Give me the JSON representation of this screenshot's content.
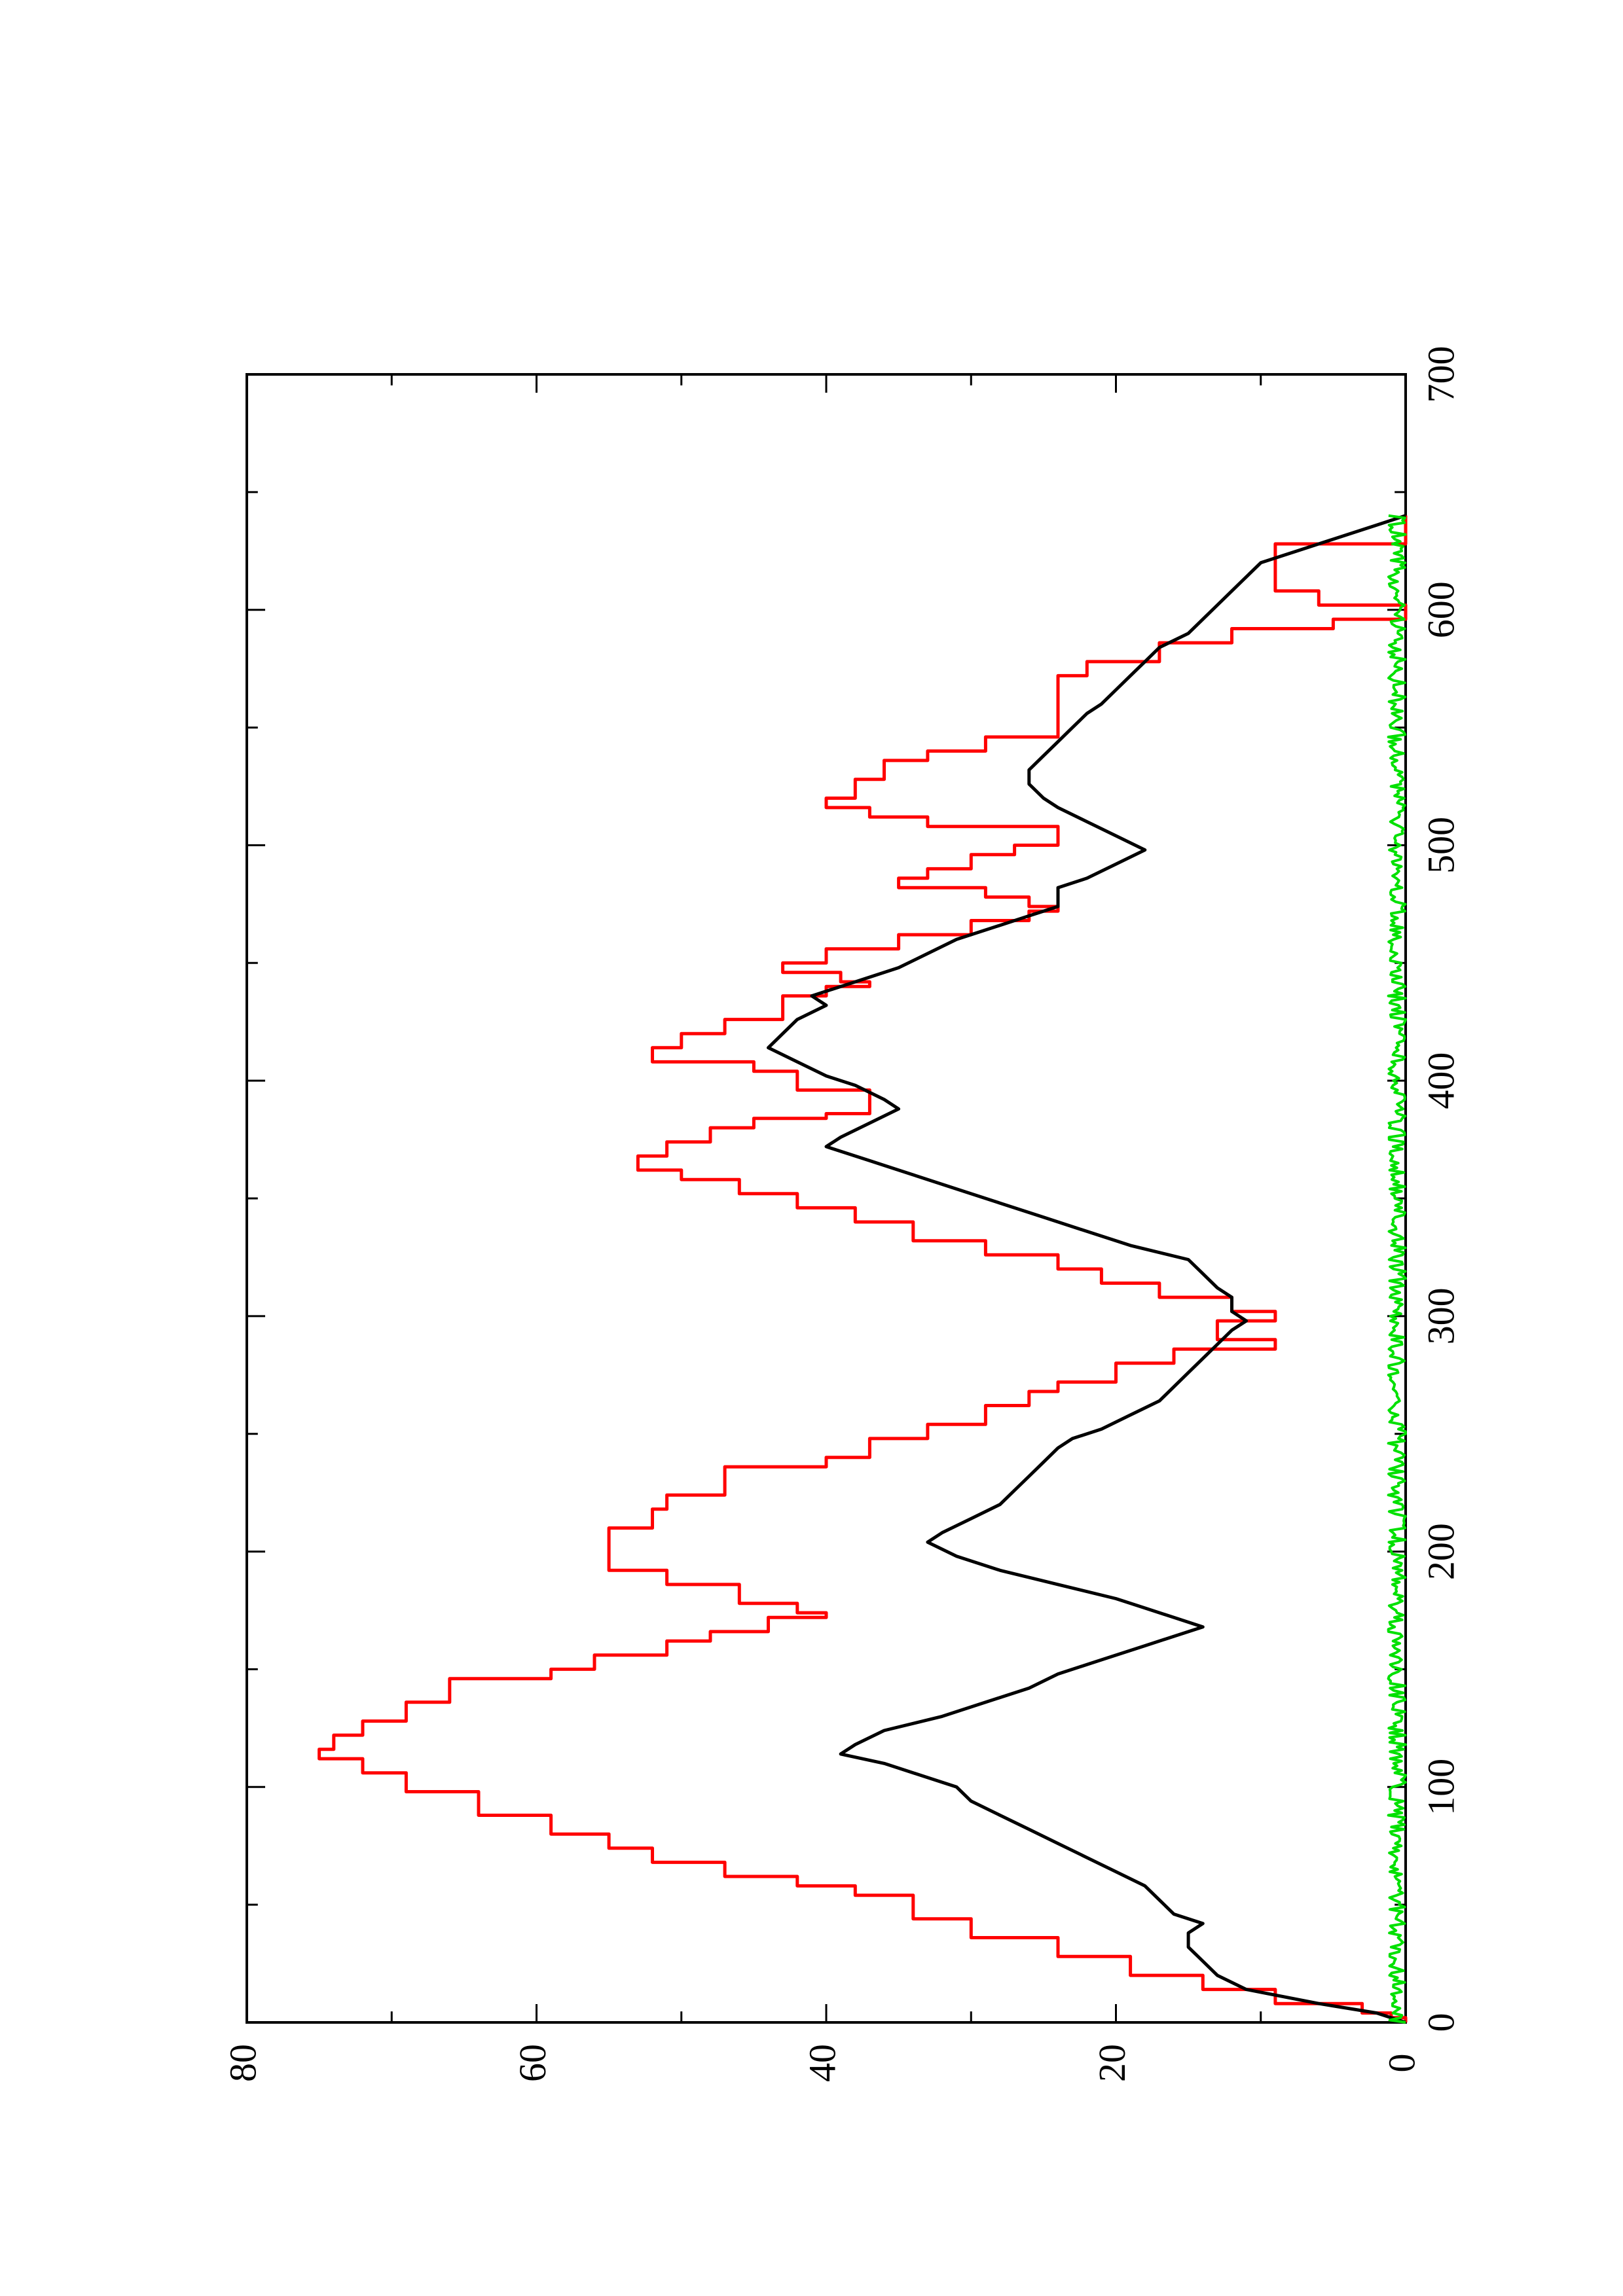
{
  "chart_data": {
    "type": "line",
    "orientation": "rotated-90-ccw",
    "title": "",
    "xlabel": "",
    "ylabel": "",
    "xlim": [
      0,
      700
    ],
    "ylim": [
      0,
      80
    ],
    "x_ticks": [
      0,
      100,
      200,
      300,
      400,
      500,
      600,
      700
    ],
    "y_ticks": [
      0,
      20,
      40,
      60,
      80
    ],
    "x_minor_step": 50,
    "y_minor_step": 10,
    "grid": false,
    "legend": "none",
    "series": [
      {
        "color": "#ff0000",
        "style": "step",
        "points": [
          [
            0,
            0
          ],
          [
            2,
            1
          ],
          [
            4,
            3
          ],
          [
            8,
            9
          ],
          [
            14,
            14
          ],
          [
            20,
            19
          ],
          [
            28,
            24
          ],
          [
            36,
            30
          ],
          [
            44,
            34
          ],
          [
            52,
            34
          ],
          [
            54,
            38
          ],
          [
            58,
            42
          ],
          [
            62,
            47
          ],
          [
            68,
            52
          ],
          [
            74,
            55
          ],
          [
            80,
            59
          ],
          [
            88,
            64
          ],
          [
            98,
            69
          ],
          [
            106,
            72
          ],
          [
            112,
            75
          ],
          [
            116,
            74
          ],
          [
            122,
            72
          ],
          [
            128,
            69
          ],
          [
            136,
            66
          ],
          [
            146,
            59
          ],
          [
            150,
            56
          ],
          [
            156,
            51
          ],
          [
            162,
            48
          ],
          [
            166,
            44
          ],
          [
            172,
            40
          ],
          [
            174,
            42
          ],
          [
            178,
            46
          ],
          [
            186,
            51
          ],
          [
            192,
            55
          ],
          [
            206,
            55
          ],
          [
            210,
            52
          ],
          [
            218,
            51
          ],
          [
            224,
            47
          ],
          [
            236,
            40
          ],
          [
            240,
            37
          ],
          [
            248,
            33
          ],
          [
            254,
            29
          ],
          [
            262,
            26
          ],
          [
            268,
            24
          ],
          [
            272,
            20
          ],
          [
            280,
            16
          ],
          [
            286,
            9
          ],
          [
            290,
            13
          ],
          [
            294,
            13
          ],
          [
            298,
            9
          ],
          [
            302,
            12
          ],
          [
            308,
            17
          ],
          [
            314,
            21
          ],
          [
            320,
            24
          ],
          [
            326,
            29
          ],
          [
            332,
            34
          ],
          [
            340,
            38
          ],
          [
            346,
            42
          ],
          [
            352,
            46
          ],
          [
            358,
            50
          ],
          [
            362,
            53
          ],
          [
            368,
            51
          ],
          [
            374,
            48
          ],
          [
            380,
            45
          ],
          [
            384,
            40
          ],
          [
            386,
            37
          ],
          [
            390,
            37
          ],
          [
            396,
            42
          ],
          [
            404,
            45
          ],
          [
            408,
            52
          ],
          [
            414,
            50
          ],
          [
            420,
            47
          ],
          [
            426,
            43
          ],
          [
            432,
            43
          ],
          [
            436,
            40
          ],
          [
            440,
            37
          ],
          [
            442,
            39
          ],
          [
            446,
            43
          ],
          [
            450,
            40
          ],
          [
            456,
            35
          ],
          [
            462,
            30
          ],
          [
            468,
            26
          ],
          [
            472,
            24
          ],
          [
            474,
            26
          ],
          [
            478,
            29
          ],
          [
            482,
            35
          ],
          [
            486,
            33
          ],
          [
            490,
            30
          ],
          [
            496,
            27
          ],
          [
            500,
            24
          ],
          [
            508,
            33
          ],
          [
            512,
            37
          ],
          [
            516,
            40
          ],
          [
            520,
            38
          ],
          [
            528,
            36
          ],
          [
            532,
            36
          ],
          [
            536,
            33
          ],
          [
            540,
            29
          ],
          [
            546,
            24
          ],
          [
            566,
            24
          ],
          [
            572,
            22
          ],
          [
            578,
            17
          ],
          [
            586,
            12
          ],
          [
            592,
            5
          ],
          [
            596,
            0
          ],
          [
            602,
            6
          ],
          [
            608,
            9
          ],
          [
            616,
            9
          ],
          [
            626,
            9
          ],
          [
            628,
            0
          ],
          [
            640,
            0
          ]
        ]
      },
      {
        "color": "#000000",
        "style": "line",
        "points": [
          [
            0,
            0
          ],
          [
            4,
            2
          ],
          [
            8,
            6
          ],
          [
            14,
            11
          ],
          [
            20,
            13
          ],
          [
            26,
            14
          ],
          [
            32,
            15
          ],
          [
            38,
            15
          ],
          [
            42,
            14
          ],
          [
            46,
            16
          ],
          [
            52,
            17
          ],
          [
            58,
            18
          ],
          [
            64,
            20
          ],
          [
            70,
            22
          ],
          [
            76,
            24
          ],
          [
            82,
            26
          ],
          [
            88,
            28
          ],
          [
            94,
            30
          ],
          [
            100,
            31
          ],
          [
            104,
            33
          ],
          [
            110,
            36
          ],
          [
            114,
            39
          ],
          [
            118,
            38
          ],
          [
            124,
            36
          ],
          [
            130,
            32
          ],
          [
            136,
            29
          ],
          [
            142,
            26
          ],
          [
            148,
            24
          ],
          [
            154,
            21
          ],
          [
            160,
            18
          ],
          [
            164,
            16
          ],
          [
            168,
            14
          ],
          [
            172,
            16
          ],
          [
            176,
            18
          ],
          [
            180,
            20
          ],
          [
            186,
            24
          ],
          [
            192,
            28
          ],
          [
            198,
            31
          ],
          [
            204,
            33
          ],
          [
            208,
            32
          ],
          [
            214,
            30
          ],
          [
            220,
            28
          ],
          [
            226,
            27
          ],
          [
            232,
            26
          ],
          [
            238,
            25
          ],
          [
            244,
            24
          ],
          [
            248,
            23
          ],
          [
            252,
            21
          ],
          [
            258,
            19
          ],
          [
            264,
            17
          ],
          [
            270,
            16
          ],
          [
            276,
            15
          ],
          [
            282,
            14
          ],
          [
            288,
            13
          ],
          [
            294,
            12
          ],
          [
            298,
            11
          ],
          [
            302,
            12
          ],
          [
            308,
            12
          ],
          [
            312,
            13
          ],
          [
            318,
            14
          ],
          [
            324,
            15
          ],
          [
            330,
            19
          ],
          [
            336,
            22
          ],
          [
            342,
            25
          ],
          [
            348,
            28
          ],
          [
            354,
            31
          ],
          [
            360,
            34
          ],
          [
            366,
            37
          ],
          [
            372,
            40
          ],
          [
            376,
            39
          ],
          [
            382,
            37
          ],
          [
            388,
            35
          ],
          [
            392,
            36
          ],
          [
            398,
            38
          ],
          [
            402,
            40
          ],
          [
            408,
            42
          ],
          [
            414,
            44
          ],
          [
            420,
            43
          ],
          [
            426,
            42
          ],
          [
            432,
            40
          ],
          [
            436,
            41
          ],
          [
            442,
            38
          ],
          [
            448,
            35
          ],
          [
            454,
            33
          ],
          [
            460,
            31
          ],
          [
            466,
            28
          ],
          [
            470,
            26
          ],
          [
            474,
            24
          ],
          [
            478,
            24
          ],
          [
            482,
            24
          ],
          [
            486,
            22
          ],
          [
            492,
            20
          ],
          [
            498,
            18
          ],
          [
            504,
            20
          ],
          [
            510,
            22
          ],
          [
            516,
            24
          ],
          [
            520,
            25
          ],
          [
            526,
            26
          ],
          [
            532,
            26
          ],
          [
            538,
            25
          ],
          [
            544,
            24
          ],
          [
            550,
            23
          ],
          [
            556,
            22
          ],
          [
            560,
            21
          ],
          [
            566,
            20
          ],
          [
            572,
            19
          ],
          [
            578,
            18
          ],
          [
            584,
            17
          ],
          [
            590,
            15
          ],
          [
            596,
            14
          ],
          [
            602,
            13
          ],
          [
            608,
            12
          ],
          [
            614,
            11
          ],
          [
            620,
            10
          ],
          [
            626,
            7
          ],
          [
            632,
            4
          ],
          [
            636,
            2
          ],
          [
            640,
            0
          ]
        ]
      },
      {
        "color": "#00e000",
        "style": "noise",
        "x_range": [
          0,
          640
        ],
        "amplitude": [
          0.0,
          1.2
        ]
      }
    ]
  }
}
